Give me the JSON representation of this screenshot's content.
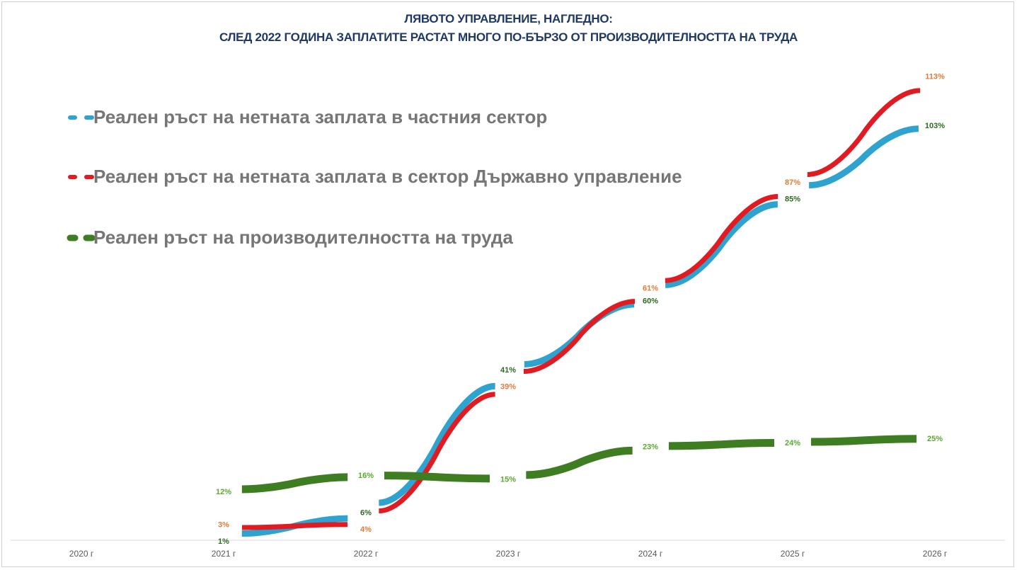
{
  "chart_data": {
    "type": "line",
    "title": "ЛЯВОТО УПРАВЛЕНИЕ, НАГЛЕДНО:",
    "subtitle": "СЛЕД 2022 ГОДИНА ЗАПЛАТИТЕ РАСТАТ МНОГО ПО-БЪРЗО ОТ ПРОИЗВОДИТЕЛНОСТТА НА ТРУДА",
    "xlabel": "",
    "ylabel": "",
    "categories": [
      "2020 г",
      "2021 г",
      "2022 г",
      "2023 г",
      "2024 г",
      "2025 г",
      "2026 г"
    ],
    "ylim": [
      0,
      120
    ],
    "grid": false,
    "legend_position": "upper-left",
    "series": [
      {
        "name": "Реален ръст на нетната заплата в частния сектор",
        "color": "#2ea3d0",
        "label_color": "#2e6b22",
        "values": [
          null,
          1,
          6,
          41,
          60,
          85,
          103
        ],
        "labels": [
          "",
          "1%",
          "6%",
          "41%",
          "60%",
          "85%",
          "103%"
        ]
      },
      {
        "name": "Реален ръст на нетната заплата в сектор Държавно управление",
        "color": "#e01b22",
        "label_color": "#e07b39",
        "values": [
          null,
          3,
          4,
          39,
          61,
          87,
          113
        ],
        "labels": [
          "",
          "3%",
          "4%",
          "39%",
          "61%",
          "87%",
          "113%"
        ]
      },
      {
        "name": "Реален ръст на производителността на труда",
        "color": "#3f7d22",
        "label_color": "#59a832",
        "values": [
          null,
          12,
          16,
          15,
          23,
          24,
          25
        ],
        "labels": [
          "",
          "12%",
          "16%",
          "15%",
          "23%",
          "24%",
          "25%"
        ]
      }
    ]
  }
}
